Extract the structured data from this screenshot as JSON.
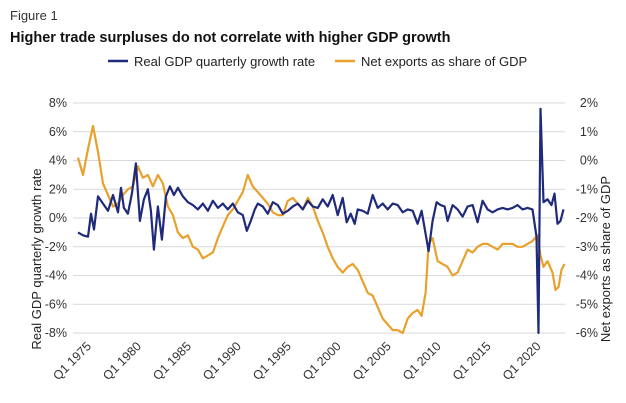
{
  "figure_label": "Figure 1",
  "chart_data": {
    "type": "line",
    "title": "Higher trade surpluses do not correlate with higher GDP growth",
    "xlabel": "",
    "ylabel": "Real GDP quarterly growth rate",
    "ylabel_right": "Net exports as share of GDP",
    "x_range": [
      1973.5,
      2022.75
    ],
    "x_ticks": [
      1975,
      1980,
      1985,
      1990,
      1995,
      2000,
      2005,
      2010,
      2015,
      2020
    ],
    "x_tick_labels": [
      "Q1 1975",
      "Q1 1980",
      "Q1 1985",
      "Q1 1990",
      "Q1 1995",
      "Q1 2000",
      "Q1 2005",
      "Q1 2010",
      "Q1 2015",
      "Q1 2020"
    ],
    "ylim_left": [
      -8,
      8
    ],
    "y_ticks_left": [
      8,
      6,
      4,
      2,
      0,
      -2,
      -4,
      -6,
      -8
    ],
    "y_tick_labels_left": [
      "8%",
      "6%",
      "4%",
      "2%",
      "0%",
      "-2%",
      "-4%",
      "-6%",
      "-8%"
    ],
    "ylim_right": [
      -6,
      2
    ],
    "y_ticks_right": [
      2,
      1,
      0,
      -1,
      -2,
      -3,
      -4,
      -5,
      -6
    ],
    "y_tick_labels_right": [
      "2%",
      "1%",
      "0%",
      "-1%",
      "-2%",
      "-3%",
      "-4%",
      "-5%",
      "-6%"
    ],
    "legend_position": "top",
    "series": [
      {
        "name": "Real GDP quarterly growth rate",
        "axis": "left",
        "color": "#1f2a7a",
        "points": [
          [
            1974.0,
            -1.0
          ],
          [
            1974.5,
            -1.2
          ],
          [
            1975.0,
            -1.3
          ],
          [
            1975.3,
            0.3
          ],
          [
            1975.6,
            -0.8
          ],
          [
            1976.0,
            1.5
          ],
          [
            1976.5,
            1.0
          ],
          [
            1977.0,
            0.5
          ],
          [
            1977.5,
            1.6
          ],
          [
            1978.0,
            0.4
          ],
          [
            1978.3,
            2.1
          ],
          [
            1978.6,
            0.7
          ],
          [
            1979.0,
            0.3
          ],
          [
            1979.4,
            1.7
          ],
          [
            1979.8,
            3.8
          ],
          [
            1980.2,
            -0.2
          ],
          [
            1980.6,
            1.3
          ],
          [
            1981.0,
            2.0
          ],
          [
            1981.3,
            0.5
          ],
          [
            1981.6,
            -2.2
          ],
          [
            1982.0,
            0.8
          ],
          [
            1982.4,
            -1.5
          ],
          [
            1982.8,
            1.5
          ],
          [
            1983.2,
            2.2
          ],
          [
            1983.6,
            1.6
          ],
          [
            1984.0,
            2.1
          ],
          [
            1984.5,
            1.5
          ],
          [
            1985.0,
            1.1
          ],
          [
            1985.5,
            0.9
          ],
          [
            1986.0,
            0.6
          ],
          [
            1986.5,
            1.0
          ],
          [
            1987.0,
            0.5
          ],
          [
            1987.5,
            1.2
          ],
          [
            1988.0,
            0.7
          ],
          [
            1988.5,
            1.0
          ],
          [
            1989.0,
            0.6
          ],
          [
            1989.5,
            1.0
          ],
          [
            1990.0,
            0.4
          ],
          [
            1990.5,
            0.2
          ],
          [
            1990.9,
            -0.9
          ],
          [
            1991.3,
            -0.2
          ],
          [
            1991.7,
            0.6
          ],
          [
            1992.0,
            1.0
          ],
          [
            1992.5,
            0.8
          ],
          [
            1993.0,
            0.3
          ],
          [
            1993.5,
            1.1
          ],
          [
            1994.0,
            0.9
          ],
          [
            1994.5,
            0.3
          ],
          [
            1995.0,
            0.5
          ],
          [
            1995.5,
            0.8
          ],
          [
            1996.0,
            1.0
          ],
          [
            1996.5,
            0.6
          ],
          [
            1997.0,
            1.2
          ],
          [
            1997.5,
            0.8
          ],
          [
            1998.0,
            0.7
          ],
          [
            1998.5,
            1.3
          ],
          [
            1999.0,
            0.8
          ],
          [
            1999.5,
            1.6
          ],
          [
            2000.0,
            0.2
          ],
          [
            2000.5,
            1.4
          ],
          [
            2000.9,
            -0.3
          ],
          [
            2001.3,
            0.3
          ],
          [
            2001.7,
            -0.4
          ],
          [
            2002.0,
            0.6
          ],
          [
            2002.5,
            0.5
          ],
          [
            2003.0,
            0.3
          ],
          [
            2003.5,
            1.6
          ],
          [
            2004.0,
            0.7
          ],
          [
            2004.5,
            1.0
          ],
          [
            2005.0,
            0.6
          ],
          [
            2005.5,
            1.0
          ],
          [
            2006.0,
            0.9
          ],
          [
            2006.5,
            0.4
          ],
          [
            2007.0,
            0.6
          ],
          [
            2007.5,
            0.5
          ],
          [
            2008.0,
            -0.4
          ],
          [
            2008.4,
            0.5
          ],
          [
            2008.8,
            -1.1
          ],
          [
            2009.1,
            -2.3
          ],
          [
            2009.5,
            -0.2
          ],
          [
            2009.9,
            1.1
          ],
          [
            2010.3,
            0.9
          ],
          [
            2010.7,
            0.8
          ],
          [
            2011.0,
            -0.2
          ],
          [
            2011.5,
            0.9
          ],
          [
            2012.0,
            0.6
          ],
          [
            2012.5,
            0.1
          ],
          [
            2013.0,
            0.8
          ],
          [
            2013.5,
            0.9
          ],
          [
            2014.0,
            -0.3
          ],
          [
            2014.5,
            1.2
          ],
          [
            2015.0,
            0.6
          ],
          [
            2015.5,
            0.4
          ],
          [
            2016.0,
            0.6
          ],
          [
            2016.5,
            0.7
          ],
          [
            2017.0,
            0.6
          ],
          [
            2017.5,
            0.7
          ],
          [
            2018.0,
            0.9
          ],
          [
            2018.5,
            0.6
          ],
          [
            2019.0,
            0.7
          ],
          [
            2019.5,
            0.6
          ],
          [
            2019.9,
            -1.3
          ],
          [
            2020.1,
            -8.0
          ],
          [
            2020.3,
            7.6
          ],
          [
            2020.6,
            1.1
          ],
          [
            2021.0,
            1.3
          ],
          [
            2021.4,
            0.9
          ],
          [
            2021.7,
            1.7
          ],
          [
            2022.0,
            -0.4
          ],
          [
            2022.3,
            -0.2
          ],
          [
            2022.6,
            0.6
          ]
        ]
      },
      {
        "name": "Net exports as share of GDP",
        "axis": "right",
        "color": "#e8a12c",
        "points": [
          [
            1974.0,
            0.1
          ],
          [
            1974.5,
            -0.5
          ],
          [
            1975.0,
            0.4
          ],
          [
            1975.5,
            1.2
          ],
          [
            1976.0,
            0.3
          ],
          [
            1976.5,
            -0.8
          ],
          [
            1977.0,
            -1.2
          ],
          [
            1977.5,
            -1.6
          ],
          [
            1978.0,
            -1.5
          ],
          [
            1978.5,
            -1.2
          ],
          [
            1979.0,
            -1.0
          ],
          [
            1979.5,
            -0.9
          ],
          [
            1980.0,
            -0.2
          ],
          [
            1980.5,
            -0.6
          ],
          [
            1981.0,
            -0.5
          ],
          [
            1981.5,
            -0.9
          ],
          [
            1982.0,
            -0.5
          ],
          [
            1982.5,
            -0.8
          ],
          [
            1983.0,
            -1.6
          ],
          [
            1983.5,
            -1.9
          ],
          [
            1984.0,
            -2.5
          ],
          [
            1984.5,
            -2.7
          ],
          [
            1985.0,
            -2.6
          ],
          [
            1985.5,
            -3.0
          ],
          [
            1986.0,
            -3.1
          ],
          [
            1986.5,
            -3.4
          ],
          [
            1987.0,
            -3.3
          ],
          [
            1987.5,
            -3.2
          ],
          [
            1988.0,
            -2.7
          ],
          [
            1988.5,
            -2.3
          ],
          [
            1989.0,
            -1.9
          ],
          [
            1989.5,
            -1.7
          ],
          [
            1990.0,
            -1.4
          ],
          [
            1990.5,
            -1.1
          ],
          [
            1991.0,
            -0.5
          ],
          [
            1991.5,
            -0.9
          ],
          [
            1992.0,
            -1.1
          ],
          [
            1992.5,
            -1.3
          ],
          [
            1993.0,
            -1.5
          ],
          [
            1993.5,
            -1.8
          ],
          [
            1994.0,
            -1.9
          ],
          [
            1994.5,
            -1.9
          ],
          [
            1995.0,
            -1.4
          ],
          [
            1995.5,
            -1.3
          ],
          [
            1996.0,
            -1.5
          ],
          [
            1996.5,
            -1.7
          ],
          [
            1997.0,
            -1.3
          ],
          [
            1997.5,
            -1.6
          ],
          [
            1998.0,
            -2.1
          ],
          [
            1998.5,
            -2.5
          ],
          [
            1999.0,
            -3.0
          ],
          [
            1999.5,
            -3.4
          ],
          [
            2000.0,
            -3.7
          ],
          [
            2000.5,
            -3.9
          ],
          [
            2001.0,
            -3.7
          ],
          [
            2001.5,
            -3.6
          ],
          [
            2002.0,
            -3.8
          ],
          [
            2002.5,
            -4.2
          ],
          [
            2003.0,
            -4.6
          ],
          [
            2003.5,
            -4.7
          ],
          [
            2004.0,
            -5.1
          ],
          [
            2004.5,
            -5.5
          ],
          [
            2005.0,
            -5.7
          ],
          [
            2005.5,
            -5.9
          ],
          [
            2006.0,
            -5.9
          ],
          [
            2006.5,
            -6.0
          ],
          [
            2007.0,
            -5.5
          ],
          [
            2007.5,
            -5.3
          ],
          [
            2008.0,
            -5.2
          ],
          [
            2008.4,
            -5.4
          ],
          [
            2008.8,
            -4.6
          ],
          [
            2009.1,
            -2.9
          ],
          [
            2009.5,
            -2.7
          ],
          [
            2010.0,
            -3.5
          ],
          [
            2010.5,
            -3.6
          ],
          [
            2011.0,
            -3.7
          ],
          [
            2011.5,
            -4.0
          ],
          [
            2012.0,
            -3.9
          ],
          [
            2012.5,
            -3.5
          ],
          [
            2013.0,
            -3.1
          ],
          [
            2013.5,
            -3.2
          ],
          [
            2014.0,
            -3.0
          ],
          [
            2014.5,
            -2.9
          ],
          [
            2015.0,
            -2.9
          ],
          [
            2015.5,
            -3.0
          ],
          [
            2016.0,
            -3.1
          ],
          [
            2016.5,
            -2.9
          ],
          [
            2017.0,
            -2.9
          ],
          [
            2017.5,
            -2.9
          ],
          [
            2018.0,
            -3.0
          ],
          [
            2018.5,
            -3.0
          ],
          [
            2019.0,
            -2.9
          ],
          [
            2019.5,
            -2.8
          ],
          [
            2020.0,
            -2.6
          ],
          [
            2020.3,
            -3.3
          ],
          [
            2020.6,
            -3.7
          ],
          [
            2021.0,
            -3.5
          ],
          [
            2021.5,
            -3.9
          ],
          [
            2021.8,
            -4.5
          ],
          [
            2022.1,
            -4.4
          ],
          [
            2022.4,
            -3.8
          ],
          [
            2022.7,
            -3.6
          ]
        ]
      }
    ]
  }
}
